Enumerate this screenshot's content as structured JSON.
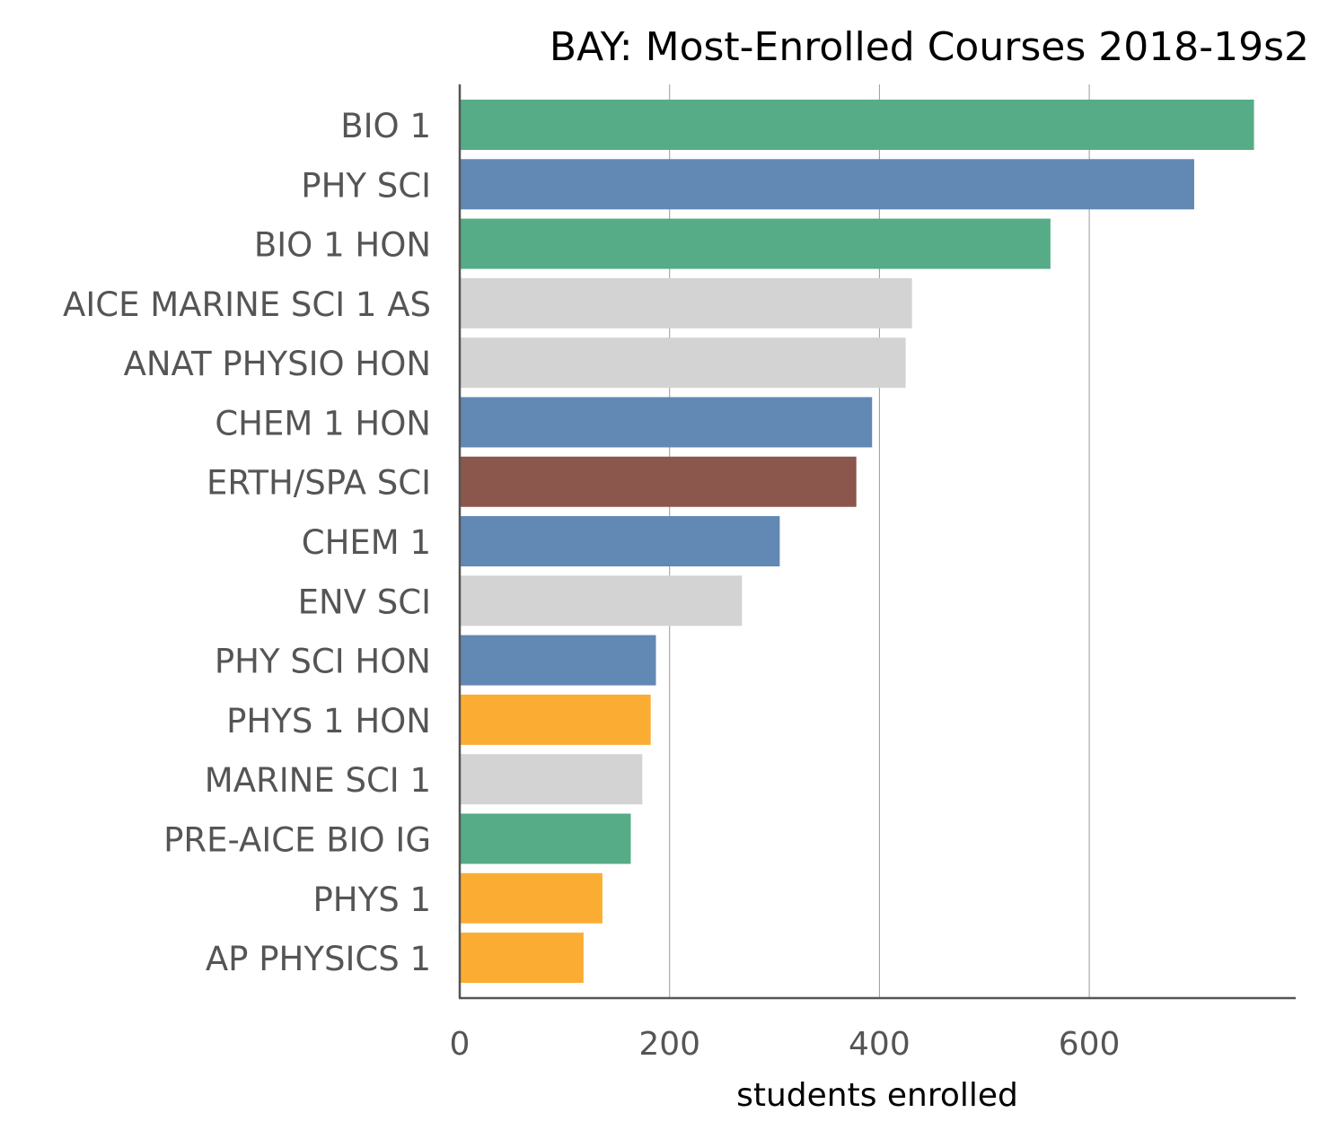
{
  "chart_data": {
    "type": "bar",
    "orientation": "horizontal",
    "title": "BAY: Most-Enrolled Courses 2018-19s2",
    "xlabel": "students enrolled",
    "ylabel": "",
    "xlim": [
      0,
      795
    ],
    "x_ticks": [
      0,
      200,
      400,
      600
    ],
    "grid": true,
    "categories": [
      "BIO 1",
      "PHY SCI",
      "BIO 1 HON",
      "AICE MARINE SCI 1 AS",
      "ANAT PHYSIO HON",
      "CHEM 1 HON",
      "ERTH/SPA SCI",
      "CHEM 1",
      "ENV SCI",
      "PHY SCI HON",
      "PHYS 1 HON",
      "MARINE SCI 1",
      "PRE-AICE BIO IG",
      "PHYS 1",
      "AP PHYSICS 1"
    ],
    "values": [
      757,
      700,
      563,
      431,
      425,
      393,
      378,
      305,
      269,
      187,
      182,
      174,
      163,
      136,
      118
    ],
    "colors": [
      "#55ac87",
      "#6288b4",
      "#55ac87",
      "#d3d3d3",
      "#d3d3d3",
      "#6288b4",
      "#8b564b",
      "#6288b4",
      "#d3d3d3",
      "#6288b4",
      "#fbad33",
      "#d3d3d3",
      "#55ac87",
      "#fbad33",
      "#fbad33"
    ]
  }
}
